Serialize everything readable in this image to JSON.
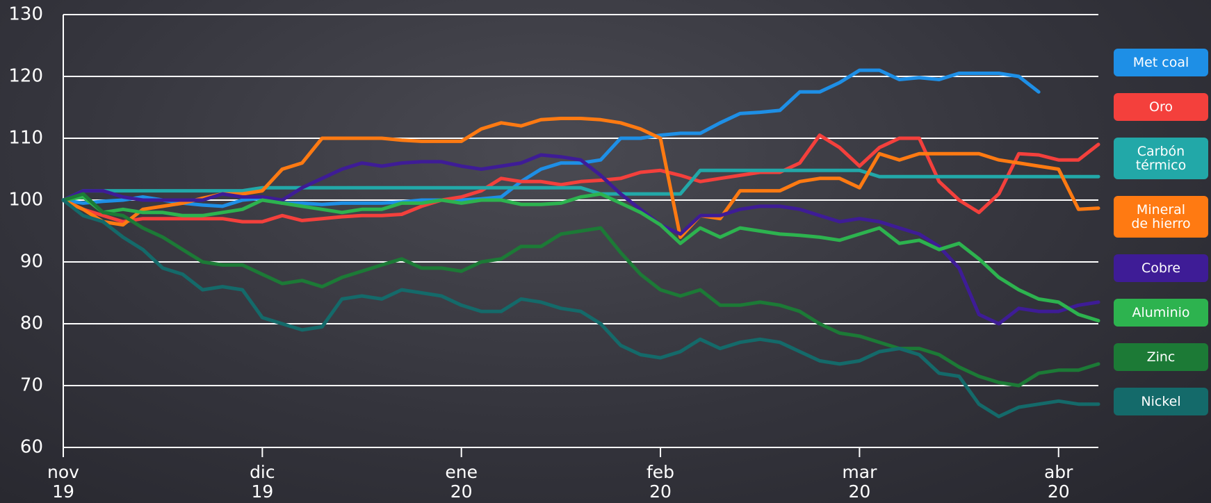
{
  "chart_data": {
    "type": "line",
    "x": [
      0,
      0.1,
      0.2,
      0.3,
      0.4,
      0.5,
      0.6,
      0.7,
      0.8,
      0.9,
      1,
      1.1,
      1.2,
      1.3,
      1.4,
      1.5,
      1.6,
      1.7,
      1.8,
      1.9,
      2,
      2.1,
      2.2,
      2.3,
      2.4,
      2.5,
      2.6,
      2.7,
      2.8,
      2.9,
      3,
      3.1,
      3.2,
      3.3,
      3.4,
      3.5,
      3.6,
      3.7,
      3.8,
      3.9,
      4,
      4.1,
      4.2,
      4.3,
      4.4,
      4.5,
      4.6,
      4.7,
      4.8,
      4.9,
      5,
      5.1,
      5.2
    ],
    "xlim": [
      0,
      5.2
    ],
    "xticks": [
      {
        "value": 0,
        "label": "nov\n19"
      },
      {
        "value": 1,
        "label": "dic\n19"
      },
      {
        "value": 2,
        "label": "ene\n20"
      },
      {
        "value": 3,
        "label": "feb\n20"
      },
      {
        "value": 4,
        "label": "mar\n20"
      },
      {
        "value": 5,
        "label": "abr\n20"
      }
    ],
    "ylim": [
      60,
      130
    ],
    "yticks": [
      60,
      70,
      80,
      90,
      100,
      110,
      120,
      130
    ],
    "grid": true,
    "legend": "right",
    "series": [
      {
        "name": "Met coal",
        "color": "#1e8fe6",
        "values": [
          100,
          99.5,
          99.8,
          100,
          100.5,
          100,
          99.5,
          99.2,
          99,
          100,
          100.3,
          99.5,
          99.5,
          99.3,
          99.5,
          99.5,
          99.5,
          99.7,
          100,
          100,
          100,
          100.2,
          100.5,
          103,
          105,
          106,
          106,
          106.5,
          110,
          110,
          110.5,
          110.8,
          110.8,
          112.5,
          114,
          114.2,
          114.5,
          117.5,
          117.5,
          119,
          121,
          121,
          119.5,
          119.8,
          119.5,
          120.5,
          120.5,
          120.5,
          120,
          117.5,
          null,
          null,
          null
        ]
      },
      {
        "name": "Oro",
        "color": "#f4403c",
        "values": [
          100,
          98.5,
          97.5,
          96.5,
          97,
          97,
          97,
          97,
          97,
          96.5,
          96.5,
          97.5,
          96.7,
          97,
          97.3,
          97.5,
          97.5,
          97.7,
          99,
          100,
          100.5,
          101.5,
          103.5,
          103,
          103,
          102.5,
          103,
          103.2,
          103.5,
          104.5,
          104.8,
          104,
          103,
          103.5,
          104,
          104.5,
          104.5,
          106,
          110.5,
          108.5,
          105.5,
          108.5,
          110,
          110,
          103,
          100,
          98,
          101,
          107.5,
          107.3,
          106.5,
          106.5,
          109
        ]
      },
      {
        "name": "Carbón\ntérmico",
        "color": "#22a8a8",
        "values": [
          100,
          101.5,
          101.5,
          101.5,
          101.5,
          101.5,
          101.5,
          101.5,
          101.5,
          101.5,
          102,
          102,
          102,
          102,
          102,
          102,
          102,
          102,
          102,
          102,
          102,
          102,
          102,
          102,
          102,
          102,
          102,
          101,
          101,
          101,
          101,
          101,
          104.8,
          104.8,
          104.8,
          104.8,
          104.8,
          104.8,
          104.8,
          104.8,
          104.8,
          103.8,
          103.8,
          103.8,
          103.8,
          103.8,
          103.8,
          103.8,
          103.8,
          103.8,
          103.8,
          103.8,
          103.8
        ]
      },
      {
        "name": "Mineral\nde hierro",
        "color": "#ff7a12",
        "values": [
          100,
          98.5,
          96.5,
          96,
          98.5,
          99,
          99.5,
          100.3,
          101,
          101,
          101.5,
          105,
          106,
          110,
          110,
          110,
          110,
          109.7,
          109.5,
          109.5,
          109.5,
          111.5,
          112.5,
          112,
          113,
          113.2,
          113.2,
          113,
          112.5,
          111.5,
          110,
          94,
          97.5,
          97,
          101.5,
          101.5,
          101.5,
          103,
          103.5,
          103.5,
          102,
          107.5,
          106.5,
          107.5,
          107.5,
          107.5,
          107.5,
          106.5,
          106,
          105.5,
          105,
          98.5,
          98.7
        ]
      },
      {
        "name": "Cobre",
        "color": "#3e1c96",
        "values": [
          100,
          101.5,
          101.5,
          100.5,
          100,
          100,
          100,
          100,
          101,
          100.5,
          100.5,
          100,
          102,
          103.5,
          105,
          106,
          105.5,
          106,
          106.2,
          106.2,
          105.5,
          105,
          105.5,
          106,
          107.3,
          107,
          106.5,
          104,
          101,
          98.5,
          96,
          94.5,
          97.5,
          97.5,
          98.5,
          99,
          99,
          98.5,
          97.5,
          96.5,
          97,
          96.5,
          95.5,
          94.5,
          92.5,
          89,
          81.5,
          80,
          82.5,
          82,
          82,
          83,
          83.5
        ]
      },
      {
        "name": "Aluminio",
        "color": "#2db34f",
        "values": [
          100,
          100.5,
          98,
          98.5,
          98,
          98,
          97.5,
          97.5,
          98,
          98.5,
          100,
          99.5,
          99,
          98.5,
          98,
          98.5,
          98.5,
          99.5,
          99.5,
          100,
          99.5,
          100,
          100,
          99.3,
          99.3,
          99.5,
          100.5,
          101,
          99.5,
          98,
          96,
          93,
          95.5,
          94,
          95.5,
          95,
          94.5,
          94.3,
          94,
          93.5,
          94.5,
          95.5,
          93,
          93.5,
          92,
          93,
          90.5,
          87.5,
          85.5,
          84,
          83.5,
          81.5,
          80.5
        ]
      },
      {
        "name": "Zinc",
        "color": "#1c7a36",
        "values": [
          100,
          101,
          98,
          97.5,
          95.5,
          94,
          92,
          90,
          89.5,
          89.5,
          88,
          86.5,
          87,
          86,
          87.5,
          88.5,
          89.5,
          90.5,
          89,
          89,
          88.5,
          90,
          90.5,
          92.5,
          92.5,
          94.5,
          95,
          95.5,
          91.5,
          88,
          85.5,
          84.5,
          85.5,
          83,
          83,
          83.5,
          83,
          82,
          80,
          78.5,
          78,
          77,
          76,
          76,
          75,
          73,
          71.5,
          70.5,
          70,
          72,
          72.5,
          72.5,
          73.5
        ]
      },
      {
        "name": "Nickel",
        "color": "#146a6a",
        "values": [
          100,
          97.5,
          96.5,
          94,
          92,
          89,
          88,
          85.5,
          86,
          85.5,
          81,
          80,
          79,
          79.5,
          84,
          84.5,
          84,
          85.5,
          85,
          84.5,
          83,
          82,
          82,
          84,
          83.5,
          82.5,
          82,
          80,
          76.5,
          75,
          74.5,
          75.5,
          77.5,
          76,
          77,
          77.5,
          77,
          75.5,
          74,
          73.5,
          74,
          75.5,
          76,
          75,
          72,
          71.5,
          67,
          65,
          66.5,
          67,
          67.5,
          67,
          67
        ]
      }
    ]
  }
}
